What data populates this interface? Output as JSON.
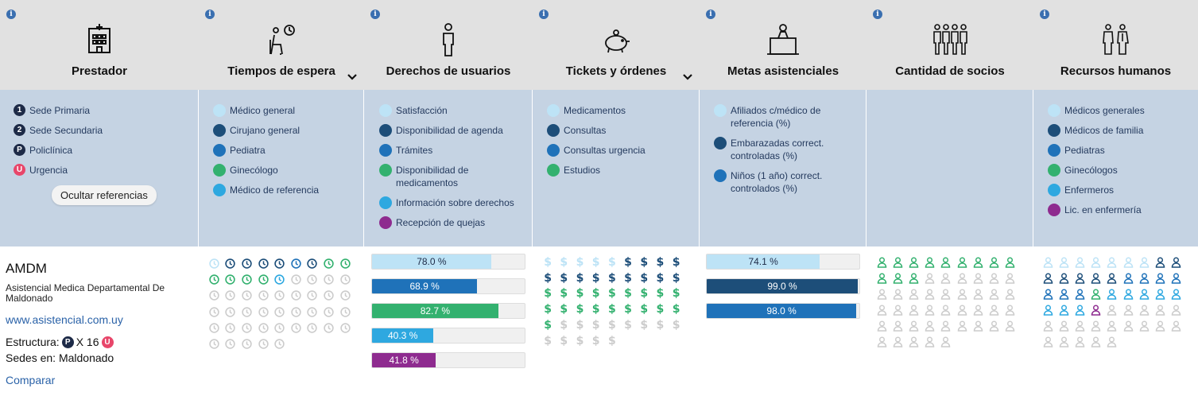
{
  "header": {
    "columns": [
      {
        "title": "Prestador",
        "icon": "hospital-icon",
        "chevron": false
      },
      {
        "title": "Tiempos de espera",
        "icon": "waiting-person-icon",
        "chevron": true
      },
      {
        "title": "Derechos de usuarios",
        "icon": "person-icon",
        "chevron": false
      },
      {
        "title": "Tickets y órdenes",
        "icon": "piggy-bank-icon",
        "chevron": true
      },
      {
        "title": "Metas asistenciales",
        "icon": "podium-speaker-icon",
        "chevron": false
      },
      {
        "title": "Cantidad de socios",
        "icon": "group-people-icon",
        "chevron": false
      },
      {
        "title": "Recursos humanos",
        "icon": "medical-staff-icon",
        "chevron": false
      }
    ],
    "info_glyph": "i"
  },
  "legend": {
    "prestador": [
      {
        "badge": "1",
        "label": "Sede Primaria"
      },
      {
        "badge": "2",
        "label": "Sede Secundaria"
      },
      {
        "badge": "P",
        "label": "Policlínica"
      },
      {
        "badge": "U",
        "label": "Urgencia"
      }
    ],
    "hide_button": "Ocultar referencias",
    "tiempos": [
      {
        "color": "#bde3f6",
        "label": "Médico general"
      },
      {
        "color": "#1d4e79",
        "label": "Cirujano general"
      },
      {
        "color": "#1f72b9",
        "label": "Pediatra"
      },
      {
        "color": "#33b16f",
        "label": "Ginecólogo"
      },
      {
        "color": "#2ea8e0",
        "label": "Médico de referencia"
      }
    ],
    "derechos": [
      {
        "color": "#bde3f6",
        "label": "Satisfacción"
      },
      {
        "color": "#1d4e79",
        "label": "Disponibilidad de agenda"
      },
      {
        "color": "#1f72b9",
        "label": "Trámites"
      },
      {
        "color": "#33b16f",
        "label": "Disponibilidad de medicamentos"
      },
      {
        "color": "#2ea8e0",
        "label": "Información sobre derechos"
      },
      {
        "color": "#8e2b8f",
        "label": "Recepción de quejas"
      }
    ],
    "tickets": [
      {
        "color": "#bde3f6",
        "label": "Medicamentos"
      },
      {
        "color": "#1d4e79",
        "label": "Consultas"
      },
      {
        "color": "#1f72b9",
        "label": "Consultas urgencia"
      },
      {
        "color": "#33b16f",
        "label": "Estudios"
      }
    ],
    "metas": [
      {
        "color": "#bde3f6",
        "label": "Afiliados c/médico de referencia (%)"
      },
      {
        "color": "#1d4e79",
        "label": "Embarazadas correct. controladas (%)"
      },
      {
        "color": "#1f72b9",
        "label": "Niños (1 año) correct. controlados (%)"
      }
    ],
    "recursos": [
      {
        "color": "#bde3f6",
        "label": "Médicos generales"
      },
      {
        "color": "#1d4e79",
        "label": "Médicos de familia"
      },
      {
        "color": "#1f72b9",
        "label": "Pediatras"
      },
      {
        "color": "#33b16f",
        "label": "Ginecólogos"
      },
      {
        "color": "#2ea8e0",
        "label": "Enfermeros"
      },
      {
        "color": "#8e2b8f",
        "label": "Lic. en enfermería"
      }
    ]
  },
  "provider": {
    "name": "AMDM",
    "full_name": "Asistencial Medica Departamental De Maldonado",
    "website": "www.asistencial.com.uy",
    "structure_label": "Estructura:",
    "structure_badge": "P",
    "structure_count": "X 16",
    "structure_badge2": "U",
    "sedes": "Sedes en: Maldonado",
    "compare": "Comparar"
  },
  "tiempos_icons": {
    "note": "clock icons per row",
    "rows": [
      [
        "#bde3f6",
        "#1d4e79",
        "#1d4e79",
        "#1d4e79",
        "#1d4e79",
        "#1f72b9",
        "#1d4e79",
        "#33b16f",
        "#33b16f"
      ],
      [
        "#33b16f",
        "#33b16f",
        "#33b16f",
        "#33b16f",
        "#2ea8e0",
        "#ccc",
        "#ccc",
        "#ccc",
        "#ccc"
      ],
      [
        "#ccc",
        "#ccc",
        "#ccc",
        "#ccc",
        "#ccc",
        "#ccc",
        "#ccc",
        "#ccc",
        "#ccc"
      ],
      [
        "#ccc",
        "#ccc",
        "#ccc",
        "#ccc",
        "#ccc",
        "#ccc",
        "#ccc",
        "#ccc",
        "#ccc"
      ],
      [
        "#ccc",
        "#ccc",
        "#ccc",
        "#ccc",
        "#ccc",
        "#ccc",
        "#ccc",
        "#ccc",
        "#ccc"
      ],
      [
        "#ccc",
        "#ccc",
        "#ccc",
        "#ccc",
        "#ccc"
      ]
    ]
  },
  "derechos_bars": [
    {
      "value": 78.0,
      "label": "78.0 %",
      "color": "#bde3f6",
      "text": "#1d2a47"
    },
    {
      "value": 68.9,
      "label": "68.9 %",
      "color": "#1f72b9",
      "text": "#fff"
    },
    {
      "value": 82.7,
      "label": "82.7 %",
      "color": "#33b16f",
      "text": "#fff"
    },
    {
      "value": 40.3,
      "label": "40.3 %",
      "color": "#2ea8e0",
      "text": "#fff"
    },
    {
      "value": 41.8,
      "label": "41.8 %",
      "color": "#8e2b8f",
      "text": "#fff"
    }
  ],
  "tickets_icons": {
    "symbol": "$",
    "rows": [
      [
        "#bde3f6",
        "#bde3f6",
        "#bde3f6",
        "#bde3f6",
        "#bde3f6",
        "#1d4e79",
        "#1d4e79",
        "#1d4e79",
        "#1d4e79"
      ],
      [
        "#1d4e79",
        "#1d4e79",
        "#1d4e79",
        "#1d4e79",
        "#1d4e79",
        "#1d4e79",
        "#1d4e79",
        "#1d4e79",
        "#1d4e79"
      ],
      [
        "#33b16f",
        "#33b16f",
        "#33b16f",
        "#33b16f",
        "#33b16f",
        "#33b16f",
        "#33b16f",
        "#33b16f",
        "#33b16f"
      ],
      [
        "#33b16f",
        "#33b16f",
        "#33b16f",
        "#33b16f",
        "#33b16f",
        "#33b16f",
        "#33b16f",
        "#33b16f",
        "#33b16f"
      ],
      [
        "#33b16f",
        "#ccc",
        "#ccc",
        "#ccc",
        "#ccc",
        "#ccc",
        "#ccc",
        "#ccc",
        "#ccc"
      ],
      [
        "#ccc",
        "#ccc",
        "#ccc",
        "#ccc",
        "#ccc"
      ]
    ]
  },
  "metas_bars": [
    {
      "value": 74.1,
      "label": "74.1 %",
      "color": "#bde3f6",
      "text": "#1d2a47"
    },
    {
      "value": 99.0,
      "label": "99.0 %",
      "color": "#1d4e79",
      "text": "#fff"
    },
    {
      "value": 98.0,
      "label": "98.0 %",
      "color": "#1f72b9",
      "text": "#fff"
    }
  ],
  "socios_icons": {
    "rows": [
      [
        "#33b16f",
        "#33b16f",
        "#33b16f",
        "#33b16f",
        "#33b16f",
        "#33b16f",
        "#33b16f",
        "#33b16f",
        "#33b16f"
      ],
      [
        "#33b16f",
        "#33b16f",
        "#33b16f",
        "#ccc",
        "#ccc",
        "#ccc",
        "#ccc",
        "#ccc",
        "#ccc"
      ],
      [
        "#ccc",
        "#ccc",
        "#ccc",
        "#ccc",
        "#ccc",
        "#ccc",
        "#ccc",
        "#ccc",
        "#ccc"
      ],
      [
        "#ccc",
        "#ccc",
        "#ccc",
        "#ccc",
        "#ccc",
        "#ccc",
        "#ccc",
        "#ccc",
        "#ccc"
      ],
      [
        "#ccc",
        "#ccc",
        "#ccc",
        "#ccc",
        "#ccc",
        "#ccc",
        "#ccc",
        "#ccc",
        "#ccc"
      ],
      [
        "#ccc",
        "#ccc",
        "#ccc",
        "#ccc",
        "#ccc"
      ]
    ]
  },
  "recursos_icons": {
    "rows": [
      [
        "#bde3f6",
        "#bde3f6",
        "#bde3f6",
        "#bde3f6",
        "#bde3f6",
        "#bde3f6",
        "#bde3f6",
        "#1d4e79",
        "#1d4e79"
      ],
      [
        "#1d4e79",
        "#1d4e79",
        "#1d4e79",
        "#1d4e79",
        "#1d4e79",
        "#1f72b9",
        "#1f72b9",
        "#1f72b9",
        "#1f72b9"
      ],
      [
        "#1f72b9",
        "#1f72b9",
        "#1f72b9",
        "#33b16f",
        "#2ea8e0",
        "#2ea8e0",
        "#2ea8e0",
        "#2ea8e0",
        "#2ea8e0"
      ],
      [
        "#2ea8e0",
        "#2ea8e0",
        "#2ea8e0",
        "#8e2b8f",
        "#ccc",
        "#ccc",
        "#ccc",
        "#ccc",
        "#ccc"
      ],
      [
        "#ccc",
        "#ccc",
        "#ccc",
        "#ccc",
        "#ccc",
        "#ccc",
        "#ccc",
        "#ccc",
        "#ccc"
      ],
      [
        "#ccc",
        "#ccc",
        "#ccc",
        "#ccc",
        "#ccc"
      ]
    ]
  }
}
